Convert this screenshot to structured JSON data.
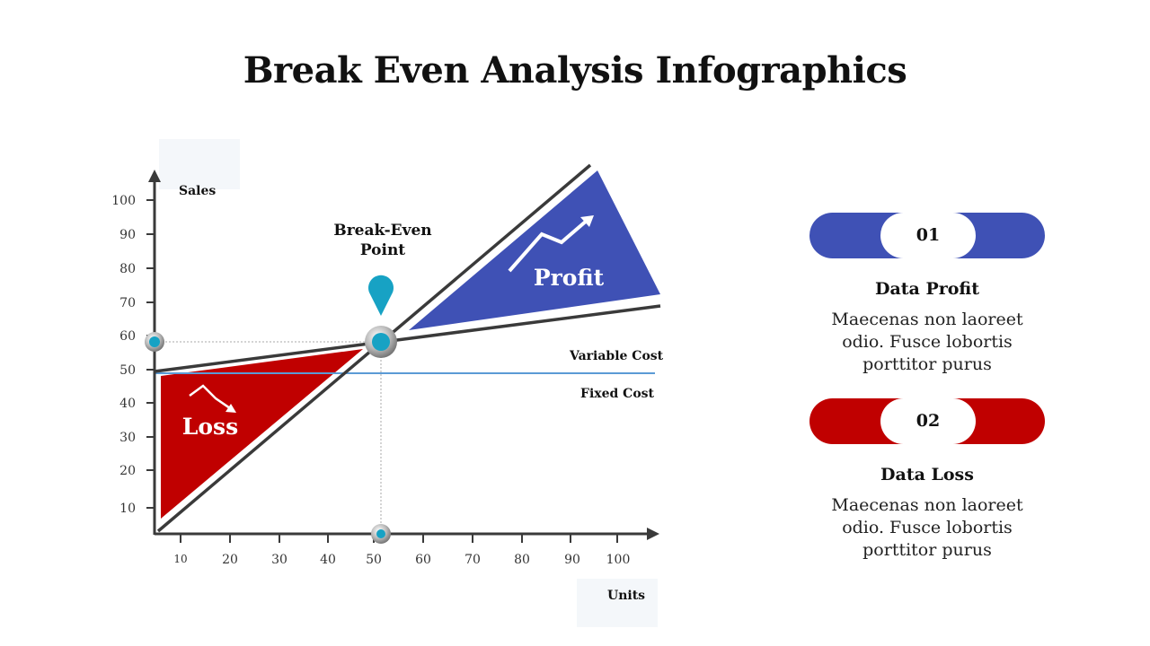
{
  "title": "Break Even Analysis Infographics",
  "axes": {
    "y_label": "Sales",
    "x_label": "Units",
    "y_ticks": [
      "100",
      "90",
      "80",
      "70",
      "60",
      "50",
      "40",
      "30",
      "20",
      "10"
    ],
    "x_ticks": [
      "10",
      "20",
      "30",
      "40",
      "50",
      "60",
      "70",
      "80",
      "90",
      "100"
    ]
  },
  "annotations": {
    "break_even_line1": "Break-Even",
    "break_even_line2": "Point",
    "variable_cost": "Variable Cost",
    "fixed_cost": "Fixed Cost",
    "profit": "Profit",
    "loss": "Loss"
  },
  "legend": [
    {
      "number": "01",
      "title": "Data Profit",
      "lines": [
        "Maecenas non laoreet",
        "odio. Fusce lobortis",
        "porttitor purus"
      ],
      "color": "#3f51b5"
    },
    {
      "number": "02",
      "title": "Data Loss",
      "lines": [
        "Maecenas non laoreet",
        "odio. Fusce lobortis",
        "porttitor purus"
      ],
      "color": "#c00000"
    }
  ],
  "colors": {
    "profit": "#3f51b5",
    "loss": "#c00000",
    "marker": "#17a2c4",
    "fixed_cost_line": "#5b9bd5",
    "axis": "#3a3a3a"
  },
  "icons": {
    "break_even_marker": "map-pin-icon",
    "profit_trend": "trend-up-arrow-icon",
    "loss_trend": "trend-down-arrow-icon"
  }
}
